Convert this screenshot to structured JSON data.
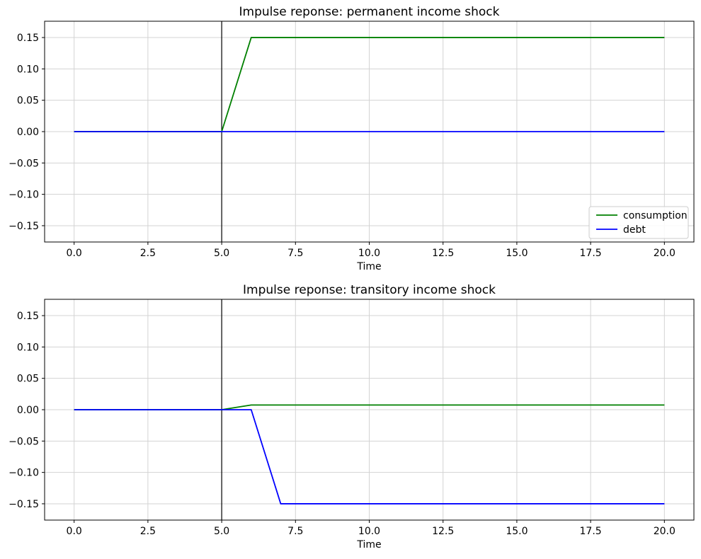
{
  "figure": {
    "background": "#ffffff"
  },
  "colors": {
    "consumption": "#008000",
    "debt": "#0000ff",
    "grid": "#d3d3d3",
    "spine": "#000000",
    "vline": "#000000",
    "legend_border": "#cccccc",
    "legend_background": "rgba(255,255,255,0.85)"
  },
  "chart_data": [
    {
      "type": "line",
      "title": "Impulse reponse: permanent income shock",
      "xlabel": "Time",
      "ylabel": "",
      "xlim": [
        -1,
        21
      ],
      "ylim": [
        -0.176,
        0.176
      ],
      "xticks": [
        0.0,
        2.5,
        5.0,
        7.5,
        10.0,
        12.5,
        15.0,
        17.5,
        20.0
      ],
      "xtick_labels": [
        "0.0",
        "2.5",
        "5.0",
        "7.5",
        "10.0",
        "12.5",
        "15.0",
        "17.5",
        "20.0"
      ],
      "yticks": [
        0.15,
        0.1,
        0.05,
        0.0,
        -0.05,
        -0.1,
        -0.15
      ],
      "ytick_labels": [
        "0.15",
        "0.10",
        "0.05",
        "0.00",
        "−0.05",
        "−0.10",
        "−0.15"
      ],
      "grid": true,
      "vline_x": 5,
      "legend": {
        "visible": true,
        "position": "lower right",
        "entries": [
          {
            "label": "consumption",
            "color": "#008000"
          },
          {
            "label": "debt",
            "color": "#0000ff"
          }
        ]
      },
      "x": [
        0,
        1,
        2,
        3,
        4,
        5,
        6,
        7,
        8,
        9,
        10,
        11,
        12,
        13,
        14,
        15,
        16,
        17,
        18,
        19,
        20
      ],
      "series": [
        {
          "name": "consumption",
          "color": "#008000",
          "y": [
            0,
            0,
            0,
            0,
            0,
            0,
            0.15,
            0.15,
            0.15,
            0.15,
            0.15,
            0.15,
            0.15,
            0.15,
            0.15,
            0.15,
            0.15,
            0.15,
            0.15,
            0.15,
            0.15
          ]
        },
        {
          "name": "debt",
          "color": "#0000ff",
          "y": [
            0,
            0,
            0,
            0,
            0,
            0,
            0,
            0,
            0,
            0,
            0,
            0,
            0,
            0,
            0,
            0,
            0,
            0,
            0,
            0,
            0
          ]
        }
      ]
    },
    {
      "type": "line",
      "title": "Impulse reponse: transitory income shock",
      "xlabel": "Time",
      "ylabel": "",
      "xlim": [
        -1,
        21
      ],
      "ylim": [
        -0.176,
        0.176
      ],
      "xticks": [
        0.0,
        2.5,
        5.0,
        7.5,
        10.0,
        12.5,
        15.0,
        17.5,
        20.0
      ],
      "xtick_labels": [
        "0.0",
        "2.5",
        "5.0",
        "7.5",
        "10.0",
        "12.5",
        "15.0",
        "17.5",
        "20.0"
      ],
      "yticks": [
        0.15,
        0.1,
        0.05,
        0.0,
        -0.05,
        -0.1,
        -0.15
      ],
      "ytick_labels": [
        "0.15",
        "0.10",
        "0.05",
        "0.00",
        "−0.05",
        "−0.10",
        "−0.15"
      ],
      "grid": true,
      "vline_x": 5,
      "legend": {
        "visible": false,
        "position": "",
        "entries": []
      },
      "x": [
        0,
        1,
        2,
        3,
        4,
        5,
        6,
        7,
        8,
        9,
        10,
        11,
        12,
        13,
        14,
        15,
        16,
        17,
        18,
        19,
        20
      ],
      "series": [
        {
          "name": "consumption",
          "color": "#008000",
          "y": [
            0,
            0,
            0,
            0,
            0,
            0,
            0.0075,
            0.0075,
            0.0075,
            0.0075,
            0.0075,
            0.0075,
            0.0075,
            0.0075,
            0.0075,
            0.0075,
            0.0075,
            0.0075,
            0.0075,
            0.0075,
            0.0075
          ]
        },
        {
          "name": "debt",
          "color": "#0000ff",
          "y": [
            0,
            0,
            0,
            0,
            0,
            0,
            0,
            -0.15,
            -0.15,
            -0.15,
            -0.15,
            -0.15,
            -0.15,
            -0.15,
            -0.15,
            -0.15,
            -0.15,
            -0.15,
            -0.15,
            -0.15,
            -0.15
          ]
        }
      ]
    }
  ]
}
